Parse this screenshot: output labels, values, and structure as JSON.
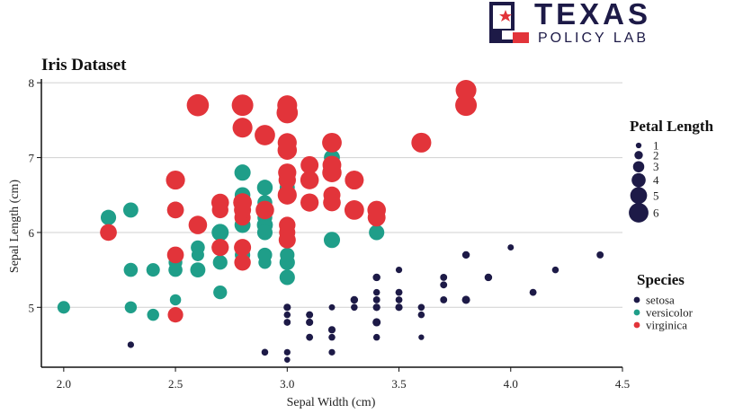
{
  "logo": {
    "line1": "TEXAS",
    "line2": "POLICY LAB",
    "navy": "#1d1a47",
    "red": "#e2343a"
  },
  "chart_data": {
    "type": "scatter",
    "title": "Iris Dataset",
    "xlabel": "Sepal Width (cm)",
    "ylabel": "Sepal Length (cm)",
    "xlim": [
      1.9,
      4.5
    ],
    "ylim": [
      4.2,
      8.05
    ],
    "xticks": [
      2.0,
      2.5,
      3.0,
      3.5,
      4.0,
      4.5
    ],
    "xtick_labels": [
      "2.0",
      "2.5",
      "3.0",
      "3.5",
      "4.0",
      "4.5"
    ],
    "yticks": [
      5,
      6,
      7,
      8
    ],
    "ytick_labels": [
      "5",
      "6",
      "7",
      "8"
    ],
    "grid": "horizontal",
    "point_format": "[sepal_width, sepal_length, petal_length]",
    "size_legend": {
      "title": "Petal Length",
      "values": [
        1,
        2,
        3,
        4,
        5,
        6
      ],
      "labels": [
        "1",
        "2",
        "3",
        "4",
        "5",
        "6"
      ],
      "placement": "right"
    },
    "color_legend": {
      "title": "Species",
      "placement": "right"
    },
    "series": [
      {
        "name": "setosa",
        "color": "#1d1a47",
        "points": [
          [
            3.5,
            5.1,
            1.4
          ],
          [
            3.0,
            4.9,
            1.4
          ],
          [
            3.2,
            4.7,
            1.3
          ],
          [
            3.1,
            4.6,
            1.5
          ],
          [
            3.6,
            5.0,
            1.4
          ],
          [
            3.9,
            5.4,
            1.7
          ],
          [
            3.4,
            4.6,
            1.4
          ],
          [
            3.4,
            5.0,
            1.5
          ],
          [
            2.9,
            4.4,
            1.4
          ],
          [
            3.1,
            4.9,
            1.5
          ],
          [
            3.7,
            5.4,
            1.5
          ],
          [
            3.4,
            4.8,
            1.6
          ],
          [
            3.0,
            4.8,
            1.4
          ],
          [
            3.0,
            4.3,
            1.1
          ],
          [
            4.0,
            5.8,
            1.2
          ],
          [
            4.4,
            5.7,
            1.5
          ],
          [
            3.9,
            5.4,
            1.3
          ],
          [
            3.5,
            5.1,
            1.4
          ],
          [
            3.8,
            5.7,
            1.7
          ],
          [
            3.8,
            5.1,
            1.5
          ],
          [
            3.4,
            5.4,
            1.7
          ],
          [
            3.7,
            5.1,
            1.5
          ],
          [
            3.6,
            4.6,
            1.0
          ],
          [
            3.3,
            5.1,
            1.7
          ],
          [
            3.4,
            4.8,
            1.9
          ],
          [
            3.0,
            5.0,
            1.6
          ],
          [
            3.4,
            5.0,
            1.6
          ],
          [
            3.5,
            5.2,
            1.5
          ],
          [
            3.4,
            5.2,
            1.4
          ],
          [
            3.2,
            4.7,
            1.6
          ],
          [
            3.1,
            4.8,
            1.6
          ],
          [
            3.4,
            5.4,
            1.5
          ],
          [
            4.1,
            5.2,
            1.5
          ],
          [
            4.2,
            5.5,
            1.4
          ],
          [
            3.1,
            4.9,
            1.5
          ],
          [
            3.2,
            5.0,
            1.2
          ],
          [
            3.5,
            5.5,
            1.3
          ],
          [
            3.6,
            4.9,
            1.4
          ],
          [
            3.0,
            4.4,
            1.3
          ],
          [
            3.4,
            5.1,
            1.5
          ],
          [
            3.5,
            5.0,
            1.3
          ],
          [
            2.3,
            4.5,
            1.3
          ],
          [
            3.2,
            4.4,
            1.3
          ],
          [
            3.5,
            5.0,
            1.6
          ],
          [
            3.8,
            5.1,
            1.9
          ],
          [
            3.0,
            4.8,
            1.4
          ],
          [
            3.8,
            5.1,
            1.6
          ],
          [
            3.2,
            4.6,
            1.4
          ],
          [
            3.7,
            5.3,
            1.5
          ],
          [
            3.3,
            5.0,
            1.4
          ]
        ]
      },
      {
        "name": "versicolor",
        "color": "#1f9e89",
        "points": [
          [
            3.2,
            7.0,
            4.7
          ],
          [
            3.2,
            6.4,
            4.5
          ],
          [
            3.1,
            6.9,
            4.9
          ],
          [
            2.3,
            5.5,
            4.0
          ],
          [
            2.8,
            6.5,
            4.6
          ],
          [
            2.8,
            5.7,
            4.5
          ],
          [
            3.3,
            6.3,
            4.7
          ],
          [
            2.4,
            4.9,
            3.3
          ],
          [
            2.9,
            6.6,
            4.6
          ],
          [
            2.7,
            5.2,
            3.9
          ],
          [
            2.0,
            5.0,
            3.5
          ],
          [
            3.0,
            5.9,
            4.2
          ],
          [
            2.2,
            6.0,
            4.0
          ],
          [
            2.9,
            6.1,
            4.7
          ],
          [
            2.9,
            5.6,
            3.6
          ],
          [
            3.1,
            6.7,
            4.4
          ],
          [
            3.0,
            5.6,
            4.5
          ],
          [
            2.7,
            5.8,
            4.1
          ],
          [
            2.2,
            6.2,
            4.5
          ],
          [
            2.5,
            5.6,
            3.9
          ],
          [
            3.2,
            5.9,
            4.8
          ],
          [
            2.8,
            6.1,
            4.0
          ],
          [
            2.5,
            6.3,
            4.9
          ],
          [
            2.8,
            6.1,
            4.7
          ],
          [
            2.9,
            6.4,
            4.3
          ],
          [
            3.0,
            6.6,
            4.4
          ],
          [
            2.8,
            6.8,
            4.8
          ],
          [
            3.0,
            6.7,
            5.0
          ],
          [
            2.9,
            6.0,
            4.5
          ],
          [
            2.6,
            5.7,
            3.5
          ],
          [
            2.4,
            5.5,
            3.8
          ],
          [
            2.4,
            5.5,
            3.7
          ],
          [
            2.7,
            5.8,
            3.9
          ],
          [
            2.7,
            6.0,
            5.1
          ],
          [
            3.0,
            5.4,
            4.5
          ],
          [
            3.4,
            6.0,
            4.5
          ],
          [
            3.1,
            6.7,
            4.7
          ],
          [
            2.3,
            6.3,
            4.4
          ],
          [
            3.0,
            5.6,
            4.1
          ],
          [
            2.5,
            5.5,
            4.0
          ],
          [
            2.6,
            5.5,
            4.4
          ],
          [
            3.0,
            6.1,
            4.6
          ],
          [
            2.6,
            5.8,
            4.0
          ],
          [
            2.3,
            5.0,
            3.3
          ],
          [
            2.7,
            5.6,
            4.2
          ],
          [
            3.0,
            5.7,
            4.2
          ],
          [
            2.9,
            5.7,
            4.2
          ],
          [
            2.9,
            6.2,
            4.3
          ],
          [
            2.5,
            5.1,
            3.0
          ],
          [
            2.8,
            5.7,
            4.1
          ]
        ]
      },
      {
        "name": "virginica",
        "color": "#e2343a",
        "points": [
          [
            3.3,
            6.3,
            6.0
          ],
          [
            2.7,
            5.8,
            5.1
          ],
          [
            3.0,
            7.1,
            5.9
          ],
          [
            2.9,
            6.3,
            5.6
          ],
          [
            3.0,
            6.5,
            5.8
          ],
          [
            3.0,
            7.6,
            6.6
          ],
          [
            2.5,
            4.9,
            4.5
          ],
          [
            2.9,
            7.3,
            6.3
          ],
          [
            2.5,
            6.7,
            5.8
          ],
          [
            3.6,
            7.2,
            6.1
          ],
          [
            3.2,
            6.5,
            5.1
          ],
          [
            2.7,
            6.4,
            5.3
          ],
          [
            3.0,
            6.8,
            5.5
          ],
          [
            2.5,
            5.7,
            5.0
          ],
          [
            2.8,
            5.8,
            5.1
          ],
          [
            3.2,
            6.4,
            5.3
          ],
          [
            3.0,
            6.5,
            5.5
          ],
          [
            3.8,
            7.7,
            6.7
          ],
          [
            2.6,
            7.7,
            6.9
          ],
          [
            2.2,
            6.0,
            5.0
          ],
          [
            3.2,
            6.9,
            5.7
          ],
          [
            2.8,
            5.6,
            4.9
          ],
          [
            2.8,
            7.7,
            6.7
          ],
          [
            2.7,
            6.3,
            4.9
          ],
          [
            3.3,
            6.7,
            5.7
          ],
          [
            3.2,
            7.2,
            6.0
          ],
          [
            2.8,
            6.2,
            4.8
          ],
          [
            3.0,
            6.1,
            4.9
          ],
          [
            2.8,
            6.4,
            5.6
          ],
          [
            3.0,
            7.2,
            5.8
          ],
          [
            2.8,
            7.4,
            6.1
          ],
          [
            3.8,
            7.9,
            6.4
          ],
          [
            2.8,
            6.4,
            5.6
          ],
          [
            2.8,
            6.3,
            5.1
          ],
          [
            2.6,
            6.1,
            5.6
          ],
          [
            3.0,
            7.7,
            6.1
          ],
          [
            3.4,
            6.3,
            5.6
          ],
          [
            3.1,
            6.4,
            5.5
          ],
          [
            3.0,
            6.0,
            4.8
          ],
          [
            3.1,
            6.9,
            5.4
          ],
          [
            3.1,
            6.7,
            5.6
          ],
          [
            3.1,
            6.9,
            5.1
          ],
          [
            2.7,
            5.8,
            5.1
          ],
          [
            3.2,
            6.8,
            5.9
          ],
          [
            3.3,
            6.7,
            5.7
          ],
          [
            3.0,
            6.7,
            5.2
          ],
          [
            2.5,
            6.3,
            5.0
          ],
          [
            3.0,
            6.5,
            5.2
          ],
          [
            3.4,
            6.2,
            5.4
          ],
          [
            3.0,
            5.9,
            5.1
          ]
        ]
      }
    ]
  }
}
